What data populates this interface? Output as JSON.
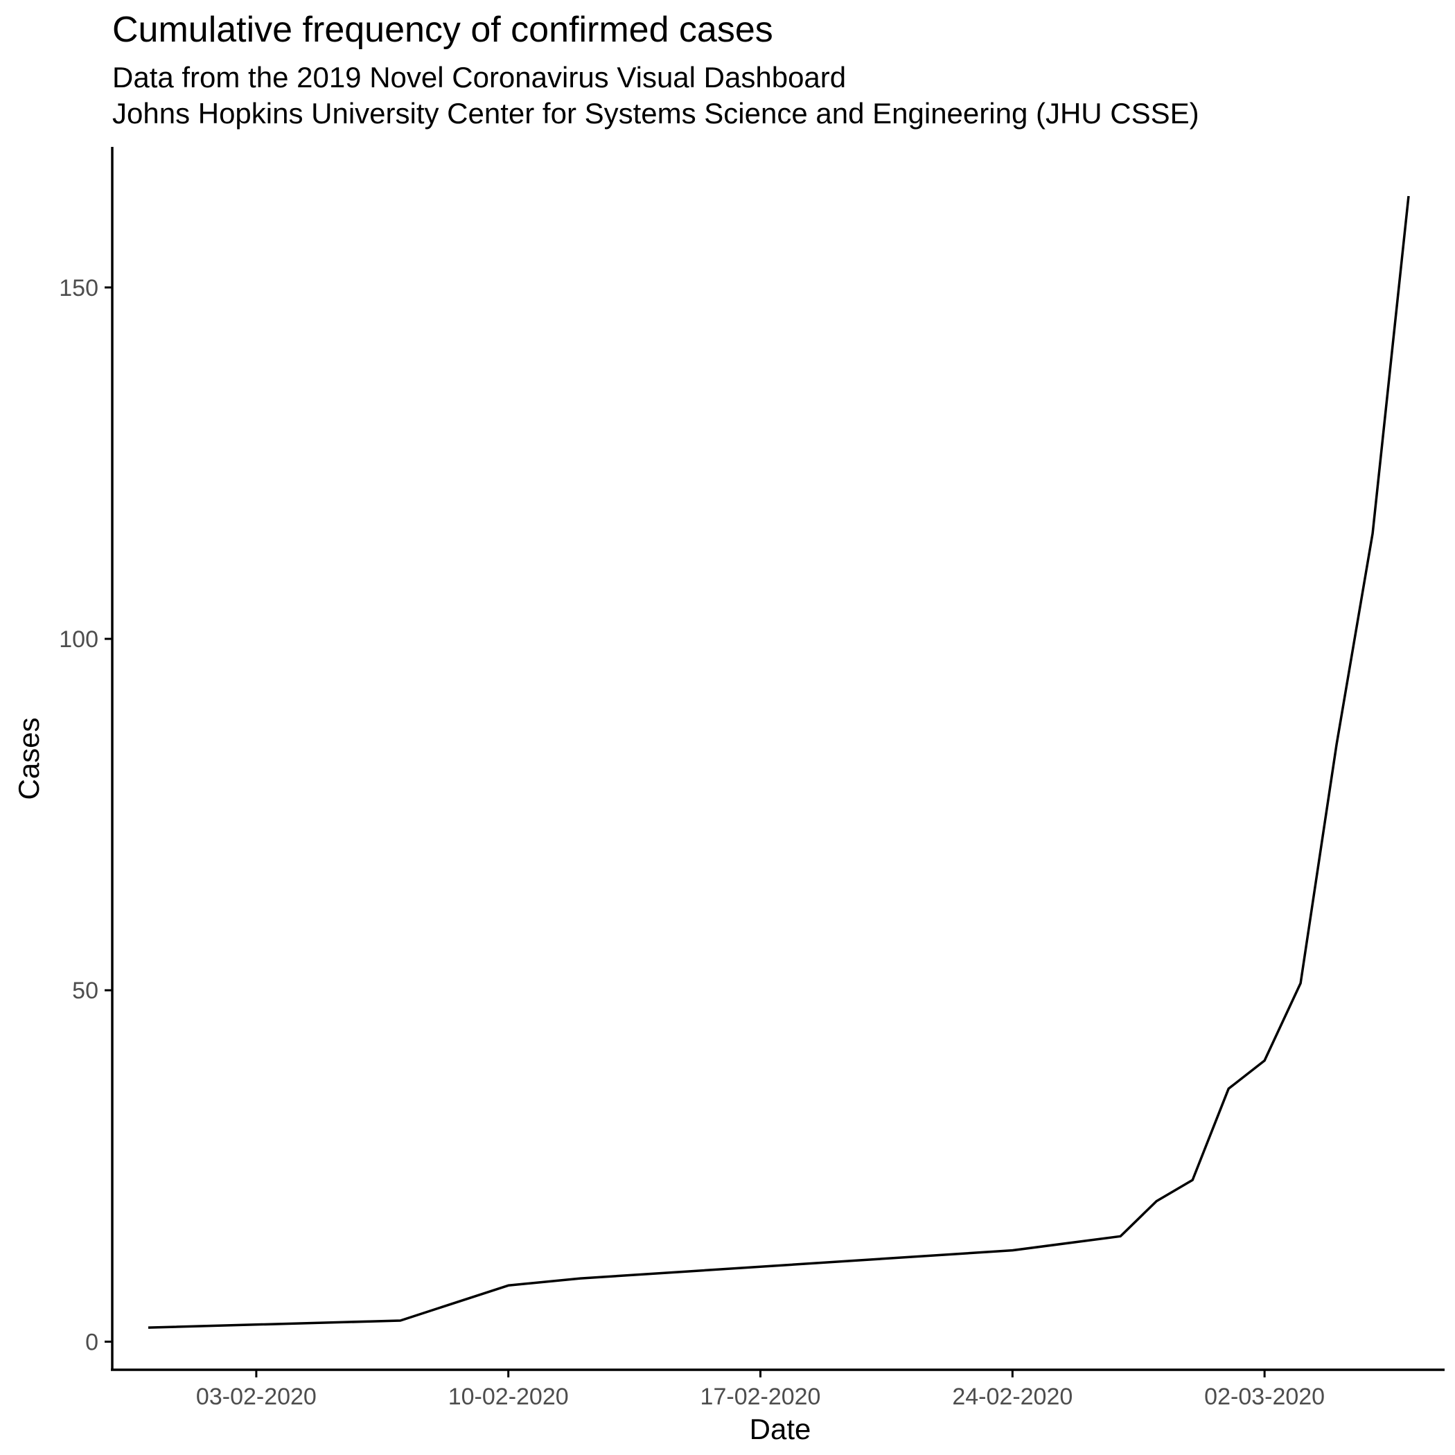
{
  "chart_data": {
    "type": "line",
    "title": "Cumulative frequency of confirmed cases",
    "subtitle": [
      "Data from the 2019 Novel Coronavirus Visual Dashboard",
      "Johns Hopkins University Center for Systems Science and Engineering (JHU CSSE)"
    ],
    "xlabel": "Date",
    "ylabel": "Cases",
    "x_type": "date",
    "xlim": [
      "30-01-2020",
      "07-03-2020"
    ],
    "ylim": [
      -4,
      170
    ],
    "x_ticks": [
      "03-02-2020",
      "10-02-2020",
      "17-02-2020",
      "24-02-2020",
      "02-03-2020"
    ],
    "y_ticks": [
      0,
      50,
      100,
      150
    ],
    "grid": false,
    "legend": "none",
    "color": "#000000",
    "points": [
      {
        "date": "31-01-2020",
        "value": 2
      },
      {
        "date": "07-02-2020",
        "value": 3
      },
      {
        "date": "10-02-2020",
        "value": 8
      },
      {
        "date": "12-02-2020",
        "value": 9
      },
      {
        "date": "24-02-2020",
        "value": 13
      },
      {
        "date": "27-02-2020",
        "value": 15
      },
      {
        "date": "28-02-2020",
        "value": 20
      },
      {
        "date": "29-02-2020",
        "value": 23
      },
      {
        "date": "01-03-2020",
        "value": 36
      },
      {
        "date": "02-03-2020",
        "value": 40
      },
      {
        "date": "03-03-2020",
        "value": 51
      },
      {
        "date": "04-03-2020",
        "value": 85
      },
      {
        "date": "05-03-2020",
        "value": 115
      },
      {
        "date": "06-03-2020",
        "value": 163
      }
    ]
  }
}
